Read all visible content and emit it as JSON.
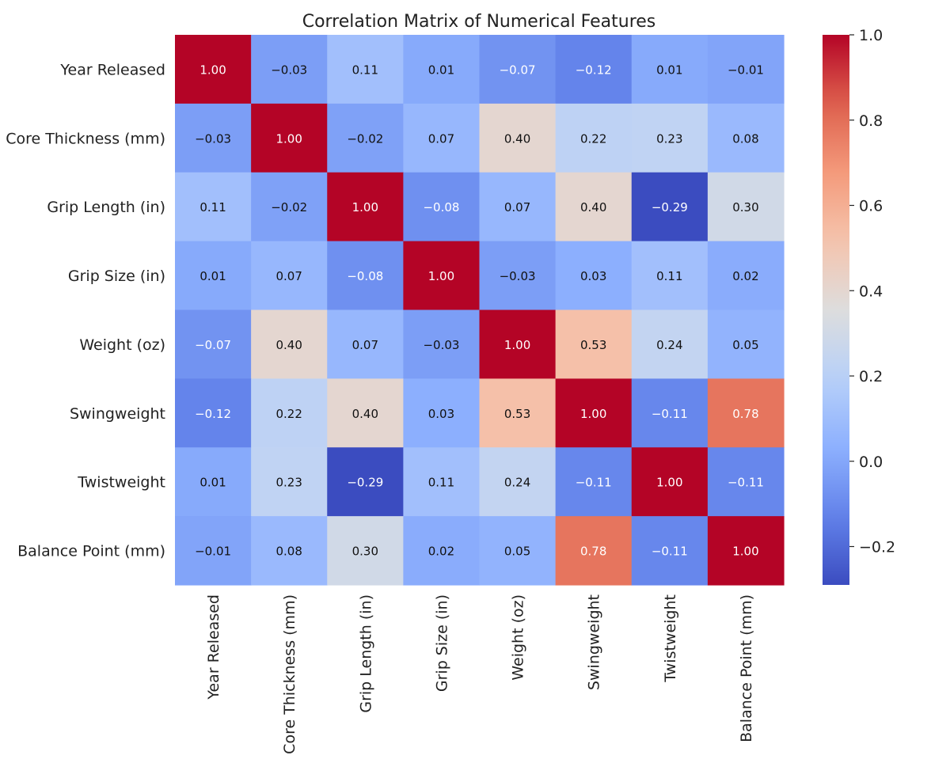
{
  "chart_data": {
    "type": "heatmap",
    "title": "Correlation Matrix of Numerical Features",
    "row_labels": [
      "Year Released",
      "Core Thickness (mm)",
      "Grip Length (in)",
      "Grip Size (in)",
      "Weight (oz)",
      "Swingweight",
      "Twistweight",
      "Balance Point (mm)"
    ],
    "col_labels": [
      "Year Released",
      "Core Thickness (mm)",
      "Grip Length (in)",
      "Grip Size (in)",
      "Weight (oz)",
      "Swingweight",
      "Twistweight",
      "Balance Point (mm)"
    ],
    "values": [
      [
        1.0,
        -0.03,
        0.11,
        0.01,
        -0.07,
        -0.12,
        0.01,
        -0.01
      ],
      [
        -0.03,
        1.0,
        -0.02,
        0.07,
        0.4,
        0.22,
        0.23,
        0.08
      ],
      [
        0.11,
        -0.02,
        1.0,
        -0.08,
        0.07,
        0.4,
        -0.29,
        0.3
      ],
      [
        0.01,
        0.07,
        -0.08,
        1.0,
        -0.03,
        0.03,
        0.11,
        0.02
      ],
      [
        -0.07,
        0.4,
        0.07,
        -0.03,
        1.0,
        0.53,
        0.24,
        0.05
      ],
      [
        -0.12,
        0.22,
        0.4,
        0.03,
        0.53,
        1.0,
        -0.11,
        0.78
      ],
      [
        0.01,
        0.23,
        -0.29,
        0.11,
        0.24,
        -0.11,
        1.0,
        -0.11
      ],
      [
        -0.01,
        0.08,
        0.3,
        0.02,
        0.05,
        0.78,
        -0.11,
        1.0
      ]
    ],
    "value_format": "2 decimals",
    "colormap": "coolwarm",
    "colorbar": {
      "min": -0.29,
      "max": 1.0,
      "ticks": [
        1.0,
        0.8,
        0.6,
        0.4,
        0.2,
        0.0,
        -0.2
      ],
      "tick_labels": [
        "1.0",
        "0.8",
        "0.6",
        "0.4",
        "0.2",
        "0.0",
        "−0.2"
      ]
    },
    "xlabel": "",
    "ylabel": ""
  }
}
